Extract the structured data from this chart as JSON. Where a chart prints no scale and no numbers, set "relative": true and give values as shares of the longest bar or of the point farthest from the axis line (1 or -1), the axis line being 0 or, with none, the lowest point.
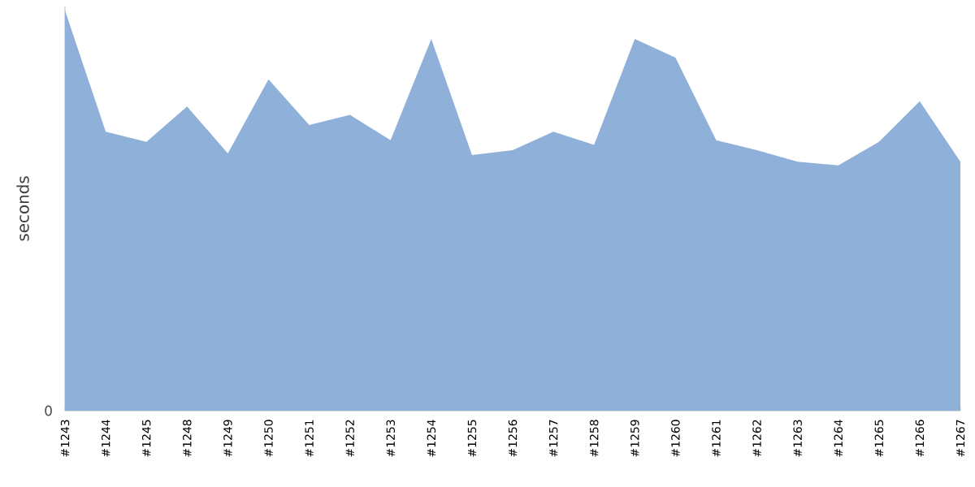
{
  "chart_data": {
    "type": "area",
    "ylabel": "seconds",
    "relative": true,
    "annotations": [
      "0"
    ],
    "categories": [
      "#1243",
      "#1244",
      "#1245",
      "#1248",
      "#1249",
      "#1250",
      "#1251",
      "#1252",
      "#1253",
      "#1254",
      "#1255",
      "#1256",
      "#1257",
      "#1258",
      "#1259",
      "#1260",
      "#1261",
      "#1262",
      "#1263",
      "#1264",
      "#1265",
      "#1266",
      "#1267"
    ],
    "values": [
      1.0,
      0.697,
      0.672,
      0.76,
      0.643,
      0.828,
      0.714,
      0.739,
      0.676,
      0.929,
      0.639,
      0.651,
      0.697,
      0.664,
      0.929,
      0.882,
      0.676,
      0.651,
      0.622,
      0.613,
      0.672,
      0.773,
      0.622
    ],
    "color": "#8fb0d9"
  }
}
